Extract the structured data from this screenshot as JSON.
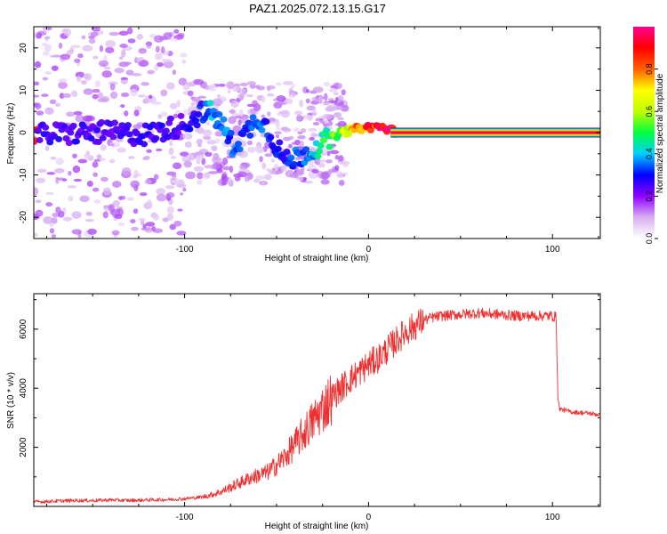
{
  "title": "PAZ1.2025.072.13.15.G17",
  "chart_data": [
    {
      "type": "heatmap",
      "xlabel": "Height of straight line (km)",
      "ylabel": "Frequency (Hz)",
      "xlim": [
        -182,
        126
      ],
      "ylim": [
        -25,
        25
      ],
      "xticks": [
        -100,
        0,
        100
      ],
      "xtick_labels": [
        "-100",
        "0",
        "100"
      ],
      "yticks": [
        -20,
        -10,
        0,
        10,
        20
      ],
      "ytick_labels": [
        "-20",
        "-10",
        "0",
        "10",
        "20"
      ],
      "colorbar": {
        "label": "Normalized spectral amplitude",
        "range": [
          0,
          1
        ],
        "ticks": [
          0,
          0.2,
          0.4,
          0.6,
          0.8
        ],
        "tick_labels": [
          "0.0",
          "0.2",
          "0.4",
          "0.6",
          "0.8"
        ],
        "colormap": [
          "#ffffff",
          "#d8b0f0",
          "#9000ff",
          "#0000ff",
          "#00d0ff",
          "#00ff40",
          "#c0ff00",
          "#ffff00",
          "#ff6000",
          "#ff0000",
          "#ff0090"
        ]
      },
      "ridge": [
        {
          "x": -180,
          "f": -0.5,
          "amp": 0.25
        },
        {
          "x": -160,
          "f": -0.2,
          "amp": 0.25
        },
        {
          "x": -140,
          "f": 0.0,
          "amp": 0.25
        },
        {
          "x": -120,
          "f": -0.5,
          "amp": 0.25
        },
        {
          "x": -100,
          "f": 2.0,
          "amp": 0.25
        },
        {
          "x": -90,
          "f": 5.0,
          "amp": 0.3
        },
        {
          "x": -85,
          "f": 4.5,
          "amp": 0.4
        },
        {
          "x": -80,
          "f": 2.0,
          "amp": 0.35
        },
        {
          "x": -74,
          "f": -3.0,
          "amp": 0.35
        },
        {
          "x": -68,
          "f": -1.0,
          "amp": 0.3
        },
        {
          "x": -60,
          "f": 4.0,
          "amp": 0.35
        },
        {
          "x": -55,
          "f": 1.0,
          "amp": 0.3
        },
        {
          "x": -50,
          "f": -3.0,
          "amp": 0.3
        },
        {
          "x": -45,
          "f": -7.0,
          "amp": 0.3
        },
        {
          "x": -35,
          "f": -5.0,
          "amp": 0.35
        },
        {
          "x": -25,
          "f": -2.5,
          "amp": 0.45
        },
        {
          "x": -15,
          "f": 0.0,
          "amp": 0.6
        },
        {
          "x": -5,
          "f": 1.0,
          "amp": 0.8
        },
        {
          "x": 5,
          "f": 1.5,
          "amp": 0.9
        },
        {
          "x": 15,
          "f": 0.2,
          "amp": 1.0
        },
        {
          "x": 126,
          "f": 0.0,
          "amp": 1.0
        }
      ]
    },
    {
      "type": "line",
      "xlabel": "Height of straight line (km)",
      "ylabel": "SNR (10 * v/v)",
      "xlim": [
        -182,
        126
      ],
      "ylim": [
        0,
        7200
      ],
      "xticks": [
        -100,
        0,
        100
      ],
      "xtick_labels": [
        "-100",
        "0",
        "100"
      ],
      "yticks": [
        2000,
        4000,
        6000
      ],
      "ytick_labels": [
        "2000",
        "4000",
        "6000"
      ],
      "line_color": "#f03030",
      "series": [
        {
          "x": [
            -182,
            -170,
            -160,
            -150,
            -140,
            -130,
            -120,
            -110,
            -100,
            -90,
            -85,
            -80,
            -75,
            -70,
            -65,
            -60,
            -55,
            -50,
            -45,
            -40,
            -35,
            -30,
            -25,
            -20,
            -15,
            -10,
            -5,
            0,
            5,
            10,
            15,
            20,
            25,
            30,
            35,
            40,
            50,
            60,
            70,
            80,
            90,
            100,
            102,
            103,
            104,
            110,
            120,
            126
          ],
          "y": [
            150,
            180,
            200,
            200,
            220,
            200,
            220,
            230,
            260,
            320,
            400,
            500,
            650,
            800,
            950,
            1050,
            1150,
            1400,
            1700,
            2100,
            2500,
            2900,
            3300,
            3700,
            4000,
            4300,
            4550,
            4800,
            5000,
            5300,
            5600,
            5900,
            6100,
            6300,
            6400,
            6450,
            6500,
            6550,
            6500,
            6450,
            6450,
            6450,
            6400,
            3600,
            3300,
            3200,
            3150,
            3100
          ]
        }
      ]
    }
  ]
}
